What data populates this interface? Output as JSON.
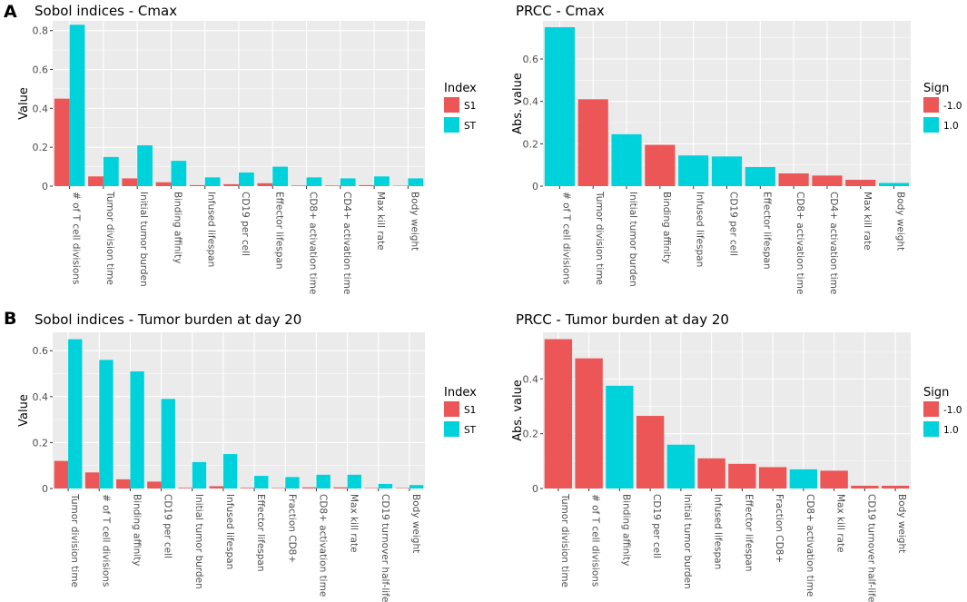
{
  "panel_labels": [
    "A",
    "B"
  ],
  "colors": {
    "s1": "#ec5656",
    "st": "#00d2dc",
    "neg": "#ec5656",
    "pos": "#00d2dc",
    "panel_bg": "#ebebeb",
    "grid": "#ffffff",
    "axis_text": "#4d4d4d"
  },
  "chart_data": [
    {
      "id": "sobol-cmax",
      "type": "bar",
      "title": "Sobol indices - Cmax",
      "ylabel": "Value",
      "xlabel": "",
      "ylim": [
        0,
        0.85
      ],
      "yticks": [
        0,
        0.2,
        0.4,
        0.6,
        0.8
      ],
      "ytick_labels": [
        "0",
        "0.2",
        "0.4",
        "0.6",
        "0.8"
      ],
      "categories": [
        "# of T cell divisions",
        "Tumor division time",
        "Initial tumor burden",
        "Binding affinity",
        "Infused lifespan",
        "CD19 per cell",
        "Effector lifespan",
        "CD8+ activation time",
        "CD4+ activation time",
        "Max kill rate",
        "Body weight"
      ],
      "series": [
        {
          "name": "S1",
          "values": [
            0.45,
            0.05,
            0.04,
            0.02,
            0.005,
            0.01,
            0.015,
            0.003,
            0.003,
            0.005,
            0.002
          ]
        },
        {
          "name": "ST",
          "values": [
            0.83,
            0.15,
            0.21,
            0.13,
            0.045,
            0.07,
            0.1,
            0.045,
            0.04,
            0.05,
            0.04
          ]
        }
      ],
      "legend": {
        "title": "Index",
        "entries": [
          "S1",
          "ST"
        ],
        "position": "right"
      }
    },
    {
      "id": "prcc-cmax",
      "type": "bar",
      "title": "PRCC - Cmax",
      "ylabel": "Abs. value",
      "xlabel": "",
      "ylim": [
        0,
        0.78
      ],
      "yticks": [
        0,
        0.2,
        0.4,
        0.6
      ],
      "ytick_labels": [
        "0",
        "0.2",
        "0.4",
        "0.6"
      ],
      "categories": [
        "# of T cell divisions",
        "Tumor division time",
        "Initial tumor burden",
        "Binding affinity",
        "Infused lifespan",
        "CD19 per cell",
        "Effector lifespan",
        "CD8+ activation time",
        "CD4+ activation time",
        "Max kill rate",
        "Body weight"
      ],
      "values": [
        0.75,
        0.41,
        0.245,
        0.195,
        0.145,
        0.14,
        0.09,
        0.06,
        0.05,
        0.03,
        0.015
      ],
      "signs": [
        1.0,
        -1.0,
        1.0,
        -1.0,
        1.0,
        1.0,
        1.0,
        -1.0,
        -1.0,
        -1.0,
        1.0
      ],
      "legend": {
        "title": "Sign",
        "entries": [
          "-1.0",
          "1.0"
        ],
        "position": "right"
      }
    },
    {
      "id": "sobol-tumor",
      "type": "bar",
      "title": "Sobol indices - Tumor burden at day 20",
      "ylabel": "Value",
      "xlabel": "",
      "ylim": [
        0,
        0.68
      ],
      "yticks": [
        0,
        0.2,
        0.4,
        0.6
      ],
      "ytick_labels": [
        "0",
        "0.2",
        "0.4",
        "0.6"
      ],
      "categories": [
        "Tumor division time",
        "# of T cell divisions",
        "Binding affinity",
        "CD19 per cell",
        "Initial tumor burden",
        "Infused lifespan",
        "Effector lifespan",
        "Fraction CD8+",
        "CD8+ activation time",
        "Max kill rate",
        "CD19 turnover half-life",
        "Body weight"
      ],
      "series": [
        {
          "name": "S1",
          "values": [
            0.12,
            0.07,
            0.04,
            0.03,
            0.003,
            0.01,
            0.003,
            0.002,
            0.005,
            0.005,
            0.002,
            0.002
          ]
        },
        {
          "name": "ST",
          "values": [
            0.65,
            0.56,
            0.51,
            0.39,
            0.115,
            0.15,
            0.055,
            0.05,
            0.06,
            0.06,
            0.02,
            0.015
          ]
        }
      ],
      "legend": {
        "title": "Index",
        "entries": [
          "S1",
          "ST"
        ],
        "position": "right"
      }
    },
    {
      "id": "prcc-tumor",
      "type": "bar",
      "title": "PRCC - Tumor burden at day 20",
      "ylabel": "Abs. value",
      "xlabel": "",
      "ylim": [
        0,
        0.57
      ],
      "yticks": [
        0,
        0.2,
        0.4
      ],
      "ytick_labels": [
        "0",
        "0.2",
        "0.4"
      ],
      "categories": [
        "Tumor division time",
        "# of T cell divisions",
        "Binding affinity",
        "CD19 per cell",
        "Initial tumor burden",
        "Infused lifespan",
        "Effector lifespan",
        "Fraction CD8+",
        "CD8+ activation time",
        "Max kill rate",
        "CD19 turnover half-life",
        "Body weight"
      ],
      "values": [
        0.545,
        0.475,
        0.375,
        0.265,
        0.16,
        0.11,
        0.09,
        0.078,
        0.07,
        0.065,
        0.01,
        0.01
      ],
      "signs": [
        -1.0,
        -1.0,
        1.0,
        -1.0,
        1.0,
        -1.0,
        -1.0,
        -1.0,
        1.0,
        -1.0,
        -1.0,
        -1.0
      ],
      "legend": {
        "title": "Sign",
        "entries": [
          "-1.0",
          "1.0"
        ],
        "position": "right"
      }
    }
  ]
}
